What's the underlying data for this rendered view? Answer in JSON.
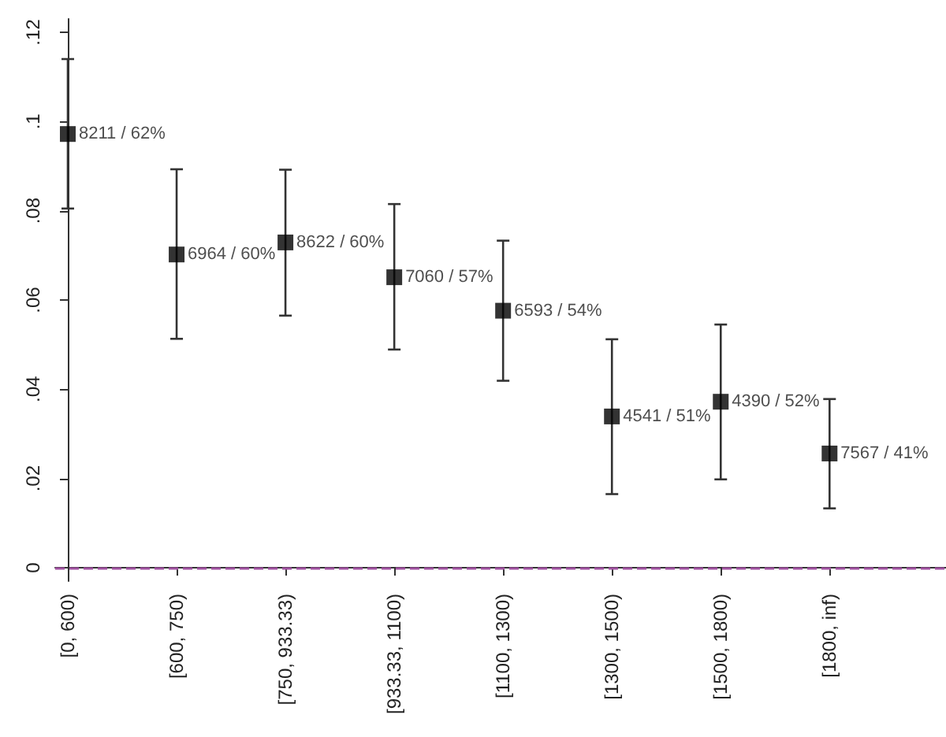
{
  "chart_data": {
    "type": "scatter",
    "categories": [
      "[0, 600)",
      "[600, 750)",
      "[750, 933.33)",
      "[933.33, 1100)",
      "[1100, 1300)",
      "[1300, 1500)",
      "[1500, 1800)",
      "[1800, inf)"
    ],
    "values": [
      0.0972,
      0.0702,
      0.0729,
      0.0651,
      0.0576,
      0.0339,
      0.0372,
      0.0256
    ],
    "errors": [
      [
        0.0805,
        0.114
      ],
      [
        0.0513,
        0.0893
      ],
      [
        0.0565,
        0.0892
      ],
      [
        0.0489,
        0.0815
      ],
      [
        0.0419,
        0.0733
      ],
      [
        0.0165,
        0.0512
      ],
      [
        0.0198,
        0.0545
      ],
      [
        0.0133,
        0.0378
      ]
    ],
    "value_labels": [
      "8211 / 62%",
      "6964 / 60%",
      "8622 / 60%",
      "7060 / 57%",
      "6593 / 54%",
      "4541 / 51%",
      "4390 / 52%",
      "7567 / 41%"
    ],
    "color": "#000000",
    "marker": "square",
    "ylim": [
      -0.003,
      0.123
    ],
    "yticks": [
      {
        "value": 0,
        "label": "0"
      },
      {
        "value": 0.02,
        "label": ".02"
      },
      {
        "value": 0.04,
        "label": ".04"
      },
      {
        "value": 0.06,
        "label": ".06"
      },
      {
        "value": 0.08,
        "label": ".08"
      },
      {
        "value": 0.1,
        "label": ".1"
      },
      {
        "value": 0.12,
        "label": ".12"
      }
    ],
    "ref_lines": [
      {
        "axis": "y",
        "value": 0,
        "color": "#a050a0",
        "line_style": "dashed"
      }
    ],
    "grid": false
  }
}
